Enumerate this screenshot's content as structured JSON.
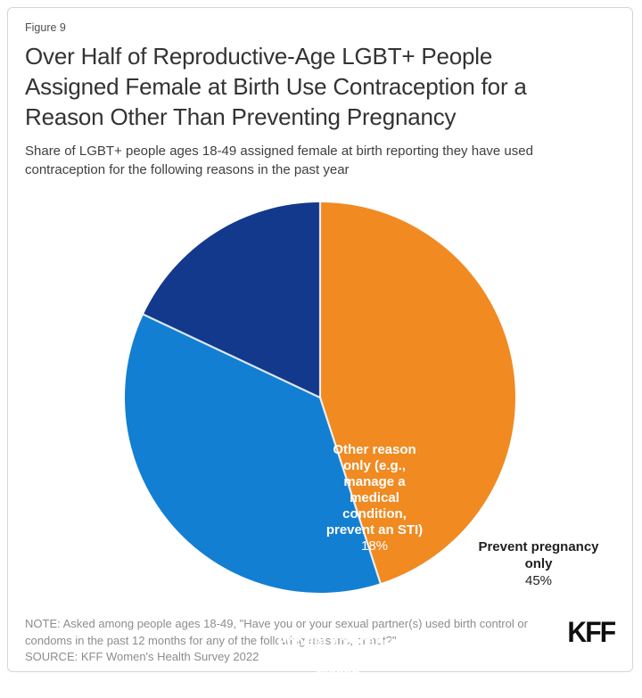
{
  "figure_label": "Figure 9",
  "title_lines": [
    "Over Half of Reproductive-Age LGBT+ People",
    "Assigned Female at Birth Use Contraception for a",
    "Reason Other Than Preventing Pregnancy"
  ],
  "subtitle_lines": [
    "Share of LGBT+ people ages 18-49 assigned female at birth reporting they have used",
    "contraception for the following reasons in the past year"
  ],
  "chart_data": {
    "type": "pie",
    "title": "Over Half of Reproductive-Age LGBT+ People Assigned Female at Birth Use Contraception for a Reason Other Than Preventing Pregnancy",
    "subtitle": "Share of LGBT+ people ages 18-49 assigned female at birth reporting they have used contraception for the following reasons in the past year",
    "units": "percent",
    "start_angle_deg": -90,
    "direction": "clockwise",
    "separator_color": "#ffffff",
    "slices": [
      {
        "label": "Prevent pregnancy only",
        "value": 45,
        "pct_label": "45%",
        "color": "#F08A21",
        "text_color": "#1F1F1F",
        "label_lines": [
          "Prevent pregnancy",
          "only"
        ]
      },
      {
        "label": "Prevent pregnancy and some other reason",
        "value": 37,
        "pct_label": "37%",
        "color": "#127FD2",
        "text_color": "#FFFFFF",
        "label_lines": [
          "Prevent pregnancy",
          "and some other",
          "reason"
        ]
      },
      {
        "label": "Other reason only (e.g., manage a medical condition, prevent an STI)",
        "value": 18,
        "pct_label": "18%",
        "color": "#13398C",
        "text_color": "#FFFFFF",
        "label_lines": [
          "Other reason",
          "only (e.g.,",
          "manage a",
          "medical",
          "condition,",
          "prevent an STI)"
        ]
      }
    ]
  },
  "footer": {
    "note_lines": [
      "NOTE: Asked among people ages 18-49, \"Have you or your sexual partner(s) used birth control or",
      "condoms in the past 12 months for any of the following reasons, or not?\""
    ],
    "source_line": "SOURCE: KFF Women's Health Survey 2022",
    "logo_text": "KFF"
  }
}
